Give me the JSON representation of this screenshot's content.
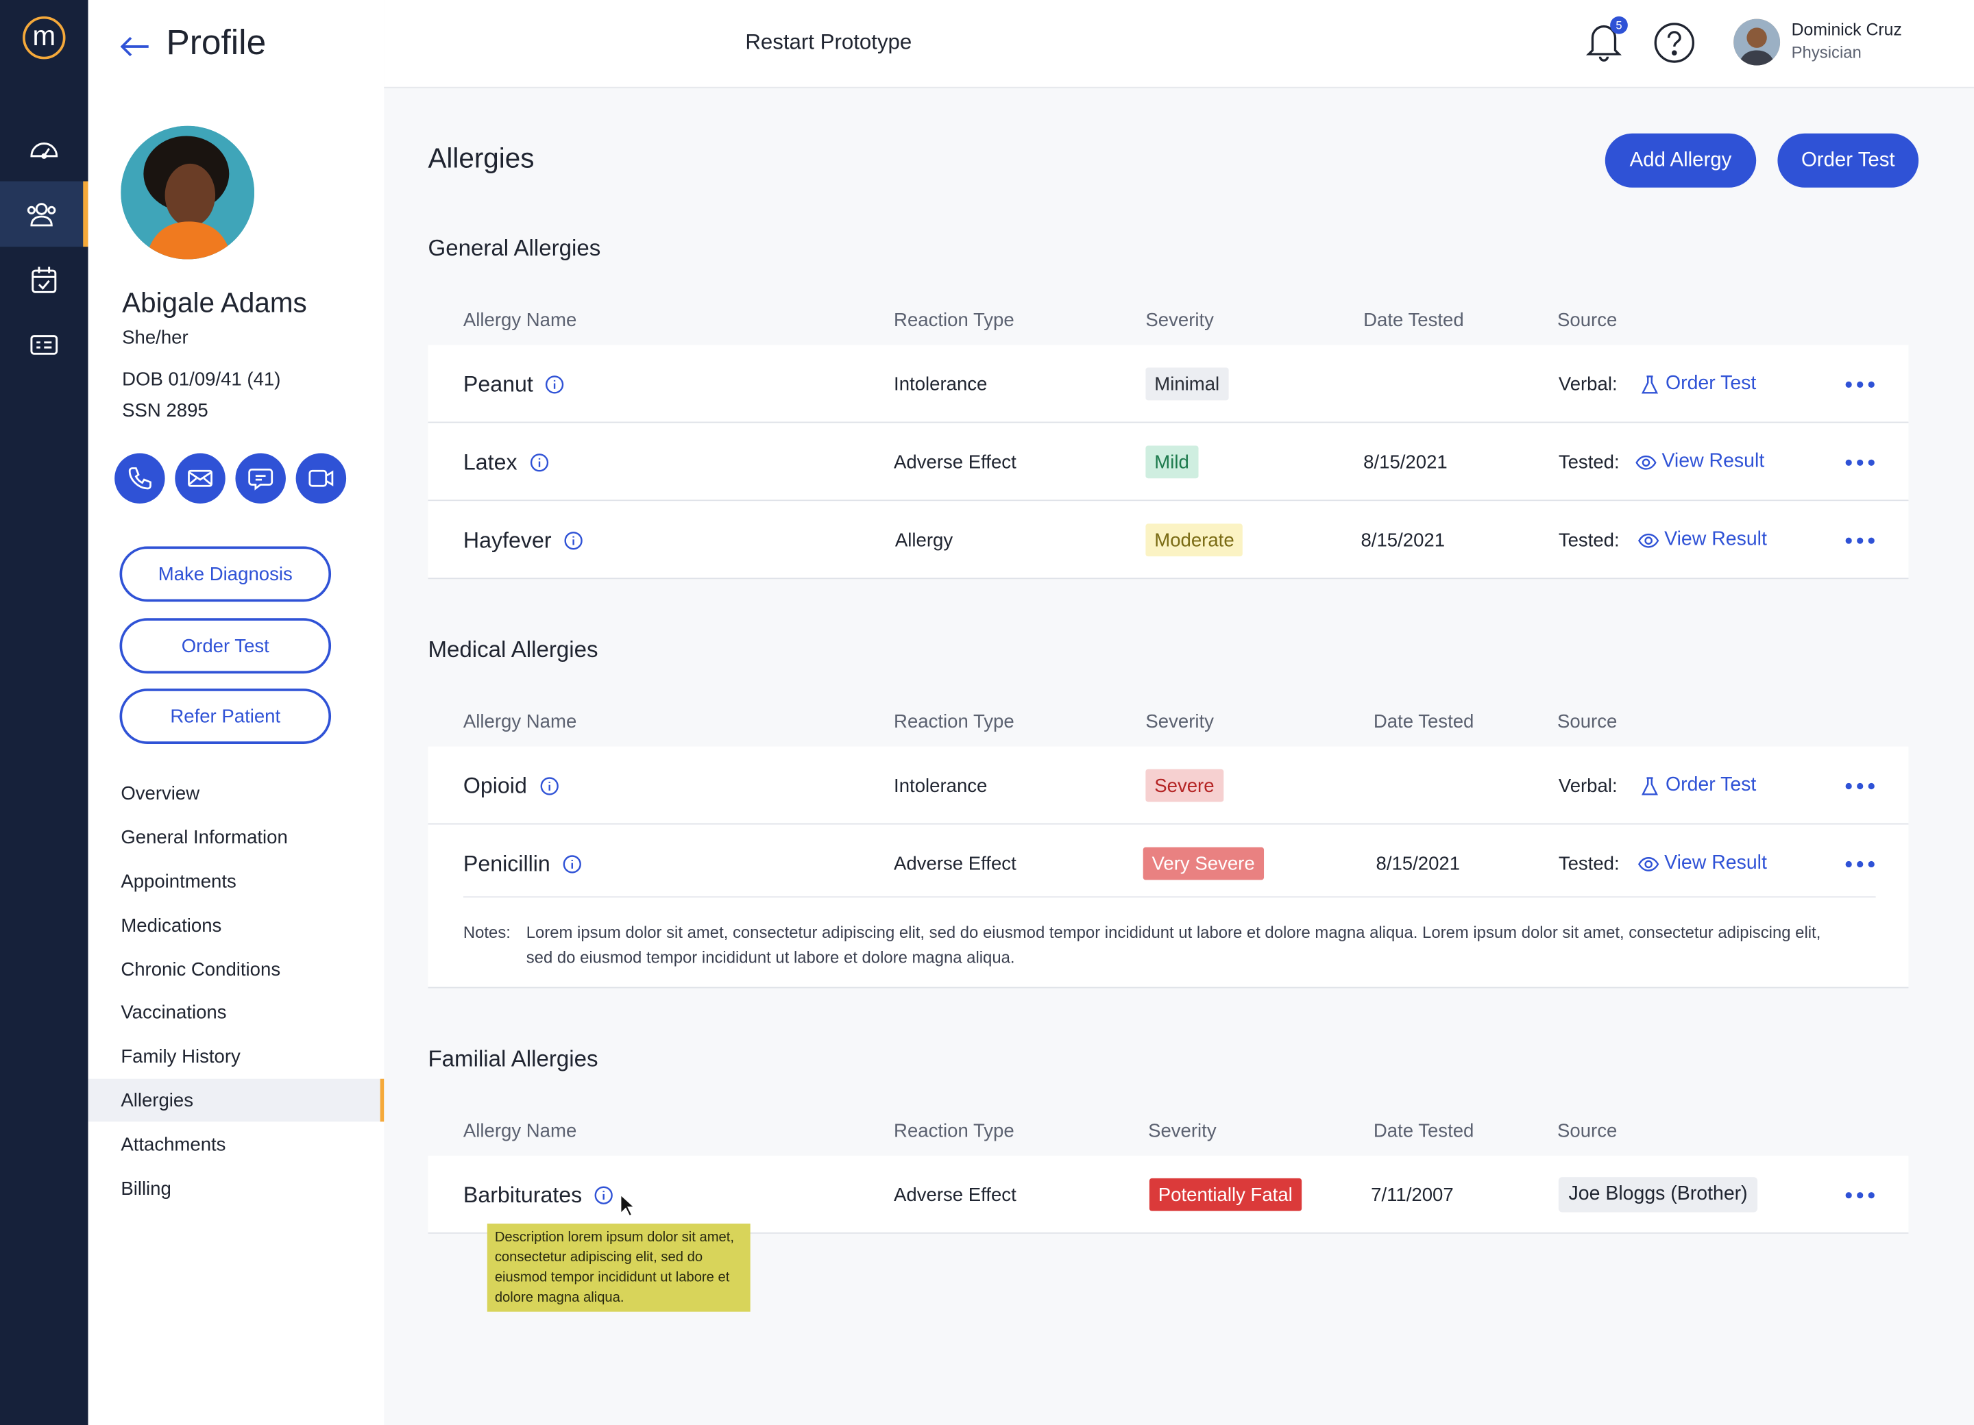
{
  "app": {
    "logo_letter": "m",
    "restart_label": "Restart Prototype",
    "notifications_count": "5",
    "user": {
      "name": "Dominick Cruz",
      "role": "Physician"
    }
  },
  "rail": {
    "items": [
      {
        "icon": "dashboard-gauge-icon"
      },
      {
        "icon": "patients-group-icon",
        "active": true
      },
      {
        "icon": "calendar-check-icon"
      },
      {
        "icon": "billing-card-icon"
      }
    ]
  },
  "profile": {
    "page_title": "Profile",
    "name": "Abigale Adams",
    "pronouns": "She/her",
    "dob": "DOB 01/09/41 (41)",
    "ssn": "SSN 2895",
    "buttons": {
      "make_diagnosis": "Make Diagnosis",
      "order_test": "Order Test",
      "refer_patient": "Refer Patient"
    },
    "nav": [
      "Overview",
      "General Information",
      "Appointments",
      "Medications",
      "Chronic Conditions",
      "Vaccinations",
      "Family History",
      "Allergies",
      "Attachments",
      "Billing"
    ],
    "active_nav": "Allergies"
  },
  "main": {
    "title": "Allergies",
    "add_allergy": "Add Allergy",
    "order_test": "Order Test",
    "columns": {
      "name": "Allergy Name",
      "reaction": "Reaction Type",
      "severity": "Severity",
      "date": "Date Tested",
      "source": "Source"
    },
    "general": {
      "title": "General Allergies",
      "rows": [
        {
          "name": "Peanut",
          "reaction": "Intolerance",
          "severity": "Minimal",
          "date": "",
          "source_label": "Verbal:",
          "source_link": "Order Test"
        },
        {
          "name": "Latex",
          "reaction": "Adverse Effect",
          "severity": "Mild",
          "date": "8/15/2021",
          "source_label": "Tested:",
          "source_link": "View Result"
        },
        {
          "name": "Hayfever",
          "reaction": "Allergy",
          "severity": "Moderate",
          "date": "8/15/2021",
          "source_label": "Tested:",
          "source_link": "View Result"
        }
      ]
    },
    "medical": {
      "title": "Medical Allergies",
      "rows": [
        {
          "name": "Opioid",
          "reaction": "Intolerance",
          "severity": "Severe",
          "date": "",
          "source_label": "Verbal:",
          "source_link": "Order Test"
        },
        {
          "name": "Penicillin",
          "reaction": "Adverse Effect",
          "severity": "Very Severe",
          "date": "8/15/2021",
          "source_label": "Tested:",
          "source_link": "View Result"
        }
      ],
      "notes_label": "Notes:",
      "notes_text": "Lorem ipsum dolor sit amet, consectetur adipiscing elit, sed do eiusmod tempor incididunt ut labore et dolore magna aliqua. Lorem ipsum dolor sit amet, consectetur adipiscing elit, sed do eiusmod tempor incididunt ut labore et dolore magna aliqua."
    },
    "familial": {
      "title": "Familial Allergies",
      "rows": [
        {
          "name": "Barbiturates",
          "reaction": "Adverse Effect",
          "severity": "Potentially Fatal",
          "date": "7/11/2007",
          "source_chip": "Joe Bloggs (Brother)"
        }
      ],
      "tooltip": "Description lorem ipsum dolor sit amet, consectetur adipiscing elit, sed do eiusmod tempor incididunt ut labore et dolore magna aliqua."
    }
  },
  "colors": {
    "primary": "#2f52d6",
    "accent": "#f5a93a",
    "rail": "#16213a"
  }
}
